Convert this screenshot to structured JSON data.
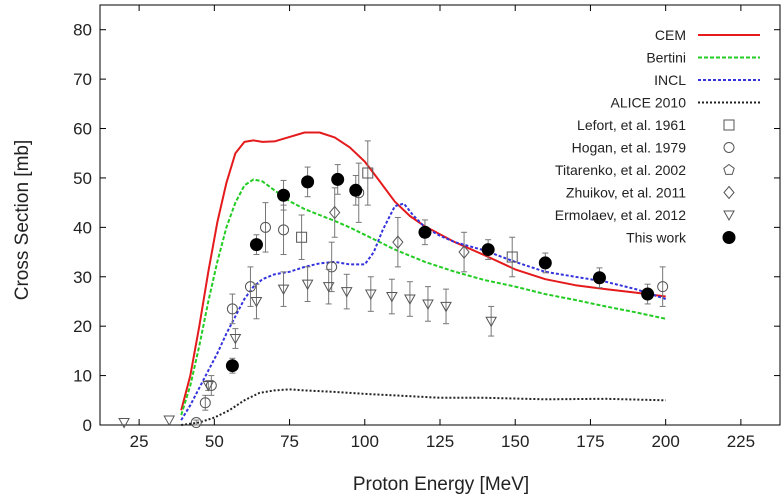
{
  "chart_data": {
    "type": "line",
    "xlabel": "Proton Energy [MeV]",
    "ylabel": "Cross Section [mb]",
    "xlim": [
      12,
      238
    ],
    "ylim": [
      0,
      85
    ],
    "x_ticks": [
      25,
      50,
      75,
      100,
      125,
      150,
      175,
      200,
      225
    ],
    "y_ticks": [
      0,
      10,
      20,
      30,
      40,
      50,
      60,
      70,
      80
    ],
    "grid": false,
    "legend_position": "top-right",
    "series": [
      {
        "name": "CEM",
        "kind": "line",
        "color": "#e41a1c",
        "dash": "solid",
        "x": [
          39,
          42,
          45,
          48,
          51,
          54,
          57,
          60,
          63,
          66,
          70,
          75,
          80,
          85,
          90,
          95,
          100,
          105,
          110,
          115,
          120,
          130,
          140,
          150,
          160,
          170,
          180,
          190,
          200
        ],
        "y": [
          3,
          10,
          20,
          31,
          41,
          49,
          55,
          57.3,
          57.6,
          57.3,
          57.4,
          58.3,
          59.2,
          59.2,
          58.2,
          56.2,
          53.3,
          49.3,
          45.2,
          42.3,
          40.2,
          37,
          34.3,
          31.5,
          29.5,
          28.3,
          27.5,
          26.8,
          26
        ]
      },
      {
        "name": "Bertini",
        "kind": "line",
        "color": "#22cc22",
        "dash": "4,2",
        "x": [
          39,
          42,
          45,
          48,
          51,
          54,
          57,
          60,
          63,
          66,
          70,
          75,
          80,
          85,
          90,
          95,
          100,
          110,
          120,
          130,
          140,
          150,
          160,
          170,
          180,
          190,
          200
        ],
        "y": [
          2,
          8,
          16,
          25,
          33,
          40,
          45,
          48.5,
          49.7,
          49.3,
          47.5,
          45.3,
          43.7,
          42.5,
          41.3,
          40,
          38.5,
          35.5,
          33,
          31,
          29.3,
          28,
          26.5,
          25.3,
          24,
          22.8,
          21.5
        ]
      },
      {
        "name": "INCL",
        "kind": "line",
        "color": "#3333dd",
        "dash": "3,2",
        "x": [
          39,
          42,
          45,
          48,
          51,
          54,
          57,
          60,
          63,
          66,
          70,
          75,
          80,
          85,
          90,
          95,
          100,
          103,
          106,
          110,
          113,
          116,
          120,
          125,
          130,
          140,
          150,
          160,
          170,
          180,
          190,
          200
        ],
        "y": [
          1,
          4,
          7.5,
          11,
          14.5,
          18.5,
          22,
          25.5,
          28,
          29.5,
          30.5,
          31,
          32,
          32.7,
          33,
          32.5,
          32.5,
          35,
          39.5,
          44.3,
          44.8,
          42.5,
          40,
          38.3,
          37,
          35.3,
          33,
          31,
          30,
          29,
          27.5,
          25.5
        ]
      },
      {
        "name": "ALICE 2010",
        "kind": "line",
        "color": "#222222",
        "dash": "2,2",
        "x": [
          39,
          45,
          50,
          55,
          60,
          65,
          70,
          75,
          80,
          90,
          100,
          110,
          125,
          140,
          160,
          180,
          200
        ],
        "y": [
          0,
          0.5,
          1.5,
          3,
          5,
          6.5,
          7,
          7.2,
          7,
          6.7,
          6.3,
          6,
          5.5,
          5.5,
          5.2,
          5.3,
          5
        ]
      },
      {
        "name": "Lefort, et al. 1961",
        "kind": "points",
        "marker": "square",
        "x": [
          79,
          101,
          149
        ],
        "y": [
          38,
          51,
          34
        ],
        "err": [
          4.5,
          6.5,
          4
        ]
      },
      {
        "name": "Hogan, et al. 1979",
        "kind": "points",
        "marker": "circle",
        "x": [
          44,
          47,
          49,
          56,
          62,
          67,
          73,
          89,
          98,
          199
        ],
        "y": [
          0.5,
          4.5,
          8,
          23.5,
          28,
          40,
          39.5,
          32,
          47,
          28
        ],
        "err": [
          0.5,
          1.5,
          2,
          3,
          4,
          5,
          5,
          5,
          6,
          4
        ]
      },
      {
        "name": "Titarenko, et al. 2002",
        "kind": "points",
        "marker": "pentagon",
        "x": [],
        "y": []
      },
      {
        "name": "Zhuikov, et al. 2011",
        "kind": "points",
        "marker": "diamond",
        "x": [
          90,
          111,
          133
        ],
        "y": [
          43,
          37,
          35
        ],
        "err": [
          5,
          5,
          4
        ]
      },
      {
        "name": "Ermolaev, et al. 2012",
        "kind": "points",
        "marker": "triangle-down",
        "x": [
          20,
          35,
          48,
          57,
          64,
          73,
          81,
          88,
          94,
          102,
          109,
          115,
          121,
          127,
          142
        ],
        "y": [
          0.5,
          1,
          8,
          17.5,
          25,
          27.5,
          28.5,
          28,
          27,
          26.5,
          26,
          25.5,
          24.5,
          24,
          21
        ],
        "err": [
          0,
          0,
          1,
          2,
          3.5,
          3.5,
          3.5,
          3.5,
          3.5,
          3.5,
          3.5,
          3.5,
          3.5,
          3.5,
          3
        ]
      },
      {
        "name": "This work",
        "kind": "points",
        "marker": "filled-circle",
        "x": [
          56,
          64,
          73,
          81,
          91,
          97,
          120,
          141,
          160,
          178,
          194
        ],
        "y": [
          12,
          36.5,
          46.5,
          49.2,
          49.7,
          47.5,
          39,
          35.5,
          32.8,
          29.8,
          26.5
        ],
        "err": [
          1.5,
          2,
          3,
          3,
          3,
          3,
          2.5,
          2,
          2,
          2,
          2
        ]
      }
    ]
  }
}
